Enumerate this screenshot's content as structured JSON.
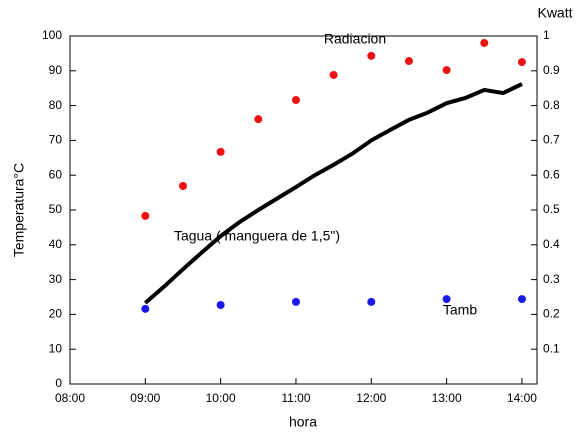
{
  "chart_data": {
    "type": "scatter",
    "xlabel": "hora",
    "ylabel": "Temperatura°C",
    "y2label": "Kwatt",
    "xlim": [
      8,
      14.2
    ],
    "ylim": [
      0,
      100
    ],
    "y2lim": [
      0,
      1
    ],
    "xticks": [
      {
        "value": 8,
        "label": "08:00"
      },
      {
        "value": 9,
        "label": "09:00"
      },
      {
        "value": 10,
        "label": "10:00"
      },
      {
        "value": 11,
        "label": "11:00"
      },
      {
        "value": 12,
        "label": "12:00"
      },
      {
        "value": 13,
        "label": "13:00"
      },
      {
        "value": 14,
        "label": "14:00"
      }
    ],
    "yticks": [
      0,
      10,
      20,
      30,
      40,
      50,
      60,
      70,
      80,
      90,
      100
    ],
    "y2ticks": [
      0.1,
      0.2,
      0.3,
      0.4,
      0.5,
      0.6,
      0.7,
      0.8,
      0.9,
      1
    ],
    "series": [
      {
        "name": "Radiacion",
        "color": "#ee1111",
        "mode": "markers",
        "axis": "y2",
        "x": [
          9,
          9.5,
          10,
          10.5,
          11,
          11.5,
          12,
          12.5,
          13,
          13.5,
          14
        ],
        "values": [
          0.483,
          0.569,
          0.667,
          0.761,
          0.816,
          0.888,
          0.943,
          0.928,
          0.902,
          0.98,
          0.925
        ]
      },
      {
        "name": "Tagua  ( manguera de 1,5\")",
        "color": "#000000",
        "mode": "line",
        "x": [
          9,
          9.25,
          9.5,
          9.75,
          10,
          10.25,
          10.5,
          10.75,
          11,
          11.25,
          11.5,
          11.75,
          12,
          12.25,
          12.5,
          12.75,
          13,
          13.25,
          13.5,
          13.75,
          14
        ],
        "values": [
          23.3,
          28,
          33,
          37.8,
          42.5,
          46.5,
          50,
          53.3,
          56.6,
          60,
          63,
          66.2,
          70,
          73,
          75.9,
          78,
          80.7,
          82.2,
          84.5,
          83.6,
          86.2
        ]
      },
      {
        "name": "Tamb",
        "color": "#1a1aee",
        "mode": "markers",
        "x": [
          9,
          10,
          11,
          12,
          13,
          14
        ],
        "values": [
          21.6,
          22.7,
          23.6,
          23.6,
          24.4,
          24.4
        ]
      }
    ]
  }
}
